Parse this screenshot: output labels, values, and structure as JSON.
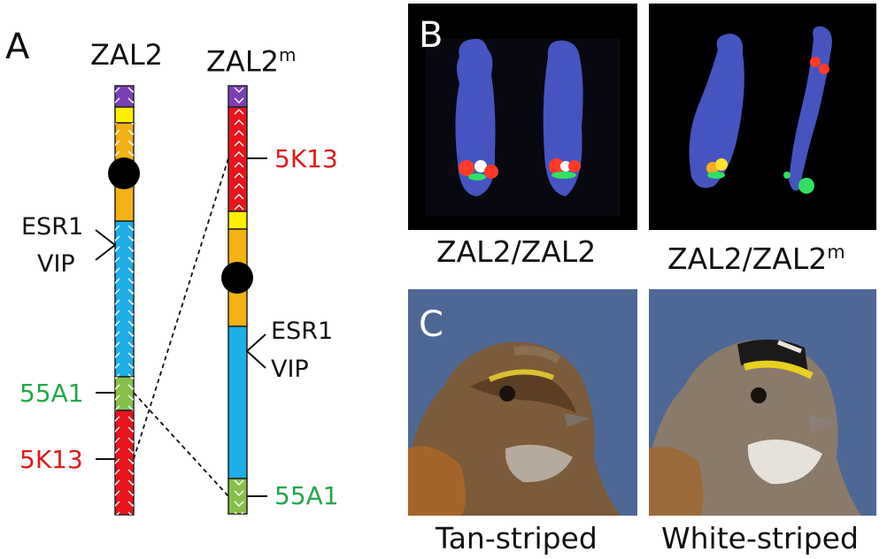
{
  "panels": {
    "a_label": "A",
    "b_label": "B",
    "c_label": "C"
  },
  "chromosomes": {
    "zal2_title": "ZAL2",
    "zal2m_title_base": "ZAL2",
    "zal2m_title_sup": "m",
    "zal2_genes_line1": "ESR1",
    "zal2_genes_line2": "VIP",
    "zal2m_genes_line1": "ESR1",
    "zal2m_genes_line2": "VIP"
  },
  "markers": {
    "zal2_55a1": "55A1",
    "zal2_5k13": "5K13",
    "zal2m_5k13": "5K13",
    "zal2m_55a1": "55A1"
  },
  "captions": {
    "fish_left": "ZAL2/ZAL2",
    "fish_right_base": "ZAL2/ZAL2",
    "fish_right_sup": "m",
    "bird_left": "Tan-striped",
    "bird_right": "White-striped"
  },
  "colors": {
    "purple": "#7a3fb5",
    "yellow": "#ffee00",
    "orange": "#f3b116",
    "blue": "#1eaee8",
    "green": "#86c04a",
    "red": "#e8141c",
    "red_text": "#e01a1a",
    "green_text": "#22a84a"
  }
}
